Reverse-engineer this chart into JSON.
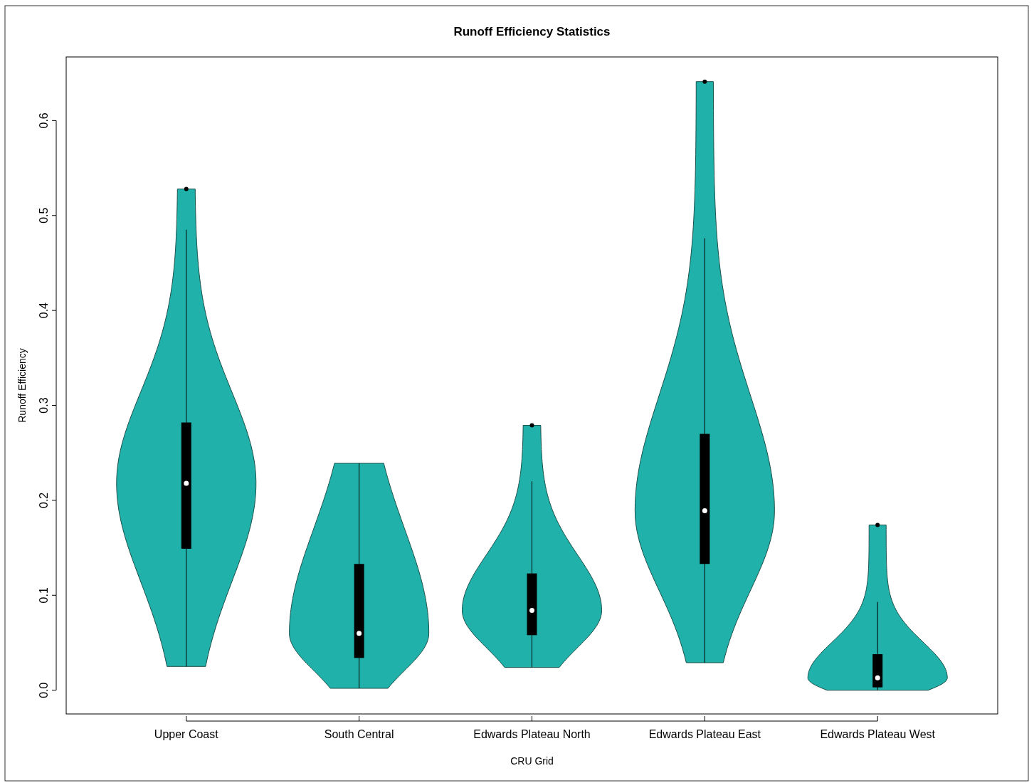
{
  "chart_data": {
    "type": "box",
    "title": "Runoff Efficiency Statistics",
    "xlabel": "CRU Grid",
    "ylabel": "Runoff Efficiency",
    "categories": [
      "Upper Coast",
      "South Central",
      "Edwards Plateau North",
      "Edwards Plateau East",
      "Edwards Plateau West"
    ],
    "color": "#000000",
    "boxes": [
      {
        "low": 0.025,
        "q1": 0.149,
        "median": 0.218,
        "q3": 0.282,
        "high": 0.485,
        "outliers": [
          0.528
        ]
      },
      {
        "low": 0.002,
        "q1": 0.034,
        "median": 0.06,
        "q3": 0.133,
        "high": 0.239
      },
      {
        "low": 0.024,
        "q1": 0.058,
        "median": 0.084,
        "q3": 0.123,
        "high": 0.22,
        "outliers": [
          0.279
        ]
      },
      {
        "low": 0.029,
        "q1": 0.133,
        "median": 0.189,
        "q3": 0.27,
        "high": 0.476,
        "outliers": [
          0.641
        ]
      },
      {
        "low": 0.0,
        "q1": 0.003,
        "median": 0.013,
        "q3": 0.038,
        "high": 0.093,
        "outliers": [
          0.174
        ]
      }
    ],
    "ylim": [
      -0.025,
      0.667
    ],
    "yticks": [
      {
        "value": 0,
        "label": "0.0"
      },
      {
        "value": 0.1,
        "label": "0.1"
      },
      {
        "value": 0.2,
        "label": "0.2"
      },
      {
        "value": 0.3,
        "label": "0.3"
      },
      {
        "value": 0.4,
        "label": "0.4"
      },
      {
        "value": 0.5,
        "label": "0.5"
      },
      {
        "value": 0.6,
        "label": "0.6"
      }
    ],
    "grid": false
  }
}
